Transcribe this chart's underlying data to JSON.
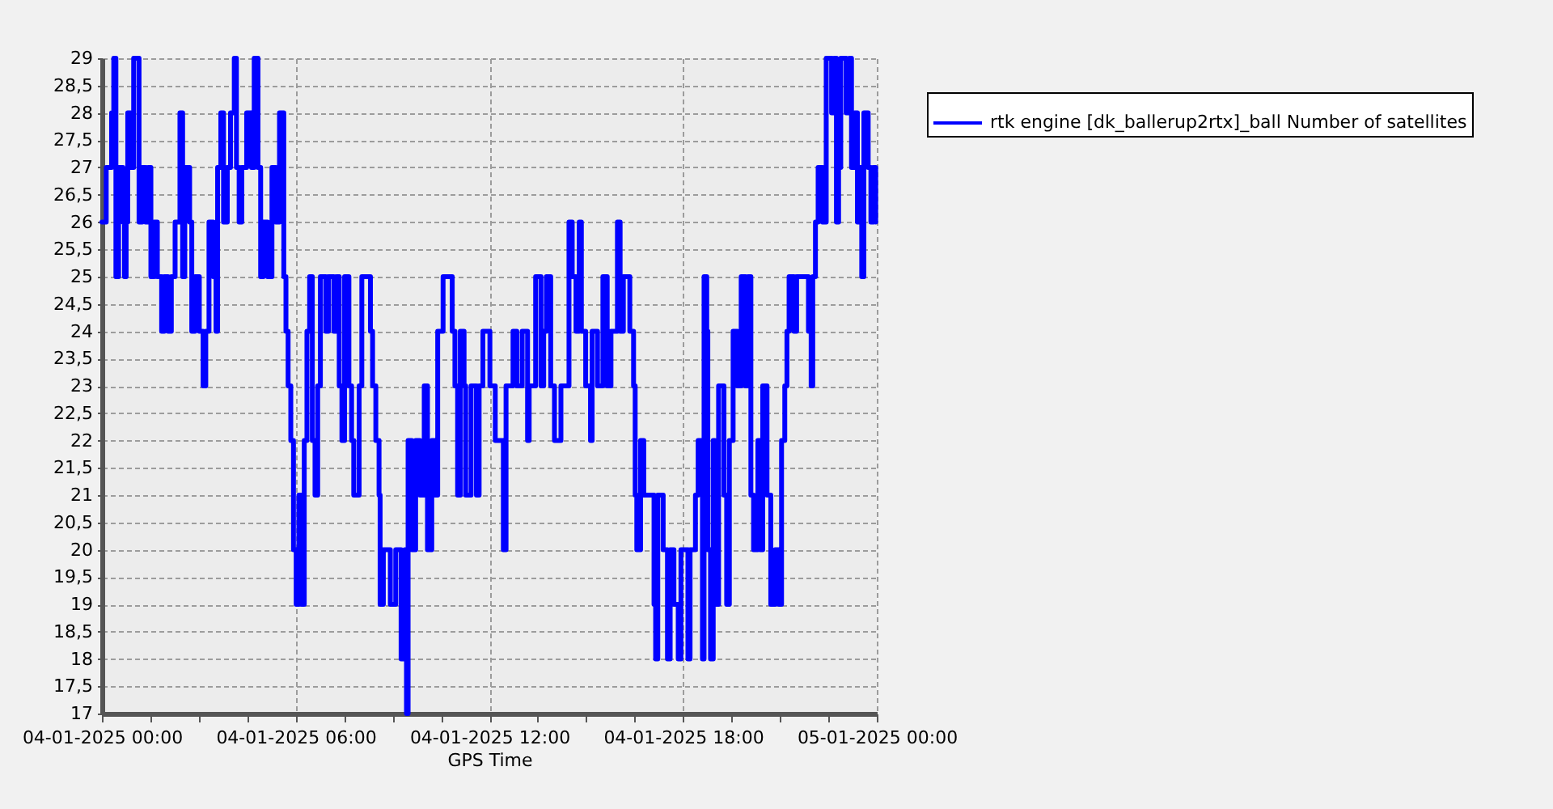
{
  "chart_data": {
    "type": "step",
    "xlabel": "GPS Time",
    "legend": "top right",
    "grid": true,
    "line_style": "solid",
    "xlim": [
      "2025-01-04T00:00",
      "2025-01-05T00:00"
    ],
    "xticks": [
      {
        "value": "2025-01-04T00:00",
        "label": "04-01-2025 00:00"
      },
      {
        "value": "2025-01-04T01:30",
        "label": null
      },
      {
        "value": "2025-01-04T03:00",
        "label": null
      },
      {
        "value": "2025-01-04T04:30",
        "label": null
      },
      {
        "value": "2025-01-04T06:00",
        "label": "04-01-2025 06:00"
      },
      {
        "value": "2025-01-04T07:30",
        "label": null
      },
      {
        "value": "2025-01-04T09:00",
        "label": null
      },
      {
        "value": "2025-01-04T10:30",
        "label": null
      },
      {
        "value": "2025-01-04T12:00",
        "label": "04-01-2025 12:00"
      },
      {
        "value": "2025-01-04T13:30",
        "label": null
      },
      {
        "value": "2025-01-04T15:00",
        "label": null
      },
      {
        "value": "2025-01-04T16:30",
        "label": null
      },
      {
        "value": "2025-01-04T18:00",
        "label": "04-01-2025 18:00"
      },
      {
        "value": "2025-01-04T19:30",
        "label": null
      },
      {
        "value": "2025-01-04T21:00",
        "label": null
      },
      {
        "value": "2025-01-04T22:30",
        "label": null
      },
      {
        "value": "2025-01-05T00:00",
        "label": "05-01-2025 00:00"
      }
    ],
    "ylim": [
      17,
      29
    ],
    "yticks": [
      17,
      {
        "value": 17.5,
        "label": "17,5"
      },
      18,
      {
        "value": 18.5,
        "label": "18,5"
      },
      19,
      {
        "value": 19.5,
        "label": "19,5"
      },
      20,
      {
        "value": 20.5,
        "label": "20,5"
      },
      21,
      {
        "value": 21.5,
        "label": "21,5"
      },
      22,
      {
        "value": 22.5,
        "label": "22,5"
      },
      23,
      {
        "value": 23.5,
        "label": "23,5"
      },
      24,
      {
        "value": 24.5,
        "label": "24,5"
      },
      25,
      {
        "value": 25.5,
        "label": "25,5"
      },
      26,
      {
        "value": 26.5,
        "label": "26,5"
      },
      27,
      {
        "value": 27.5,
        "label": "27,5"
      },
      28,
      {
        "value": 28.5,
        "label": "28,5"
      },
      29
    ],
    "x": [
      "2025-01-04T00:00",
      "2025-01-04T00:08",
      "2025-01-04T00:18",
      "2025-01-04T00:22",
      "2025-01-04T00:26",
      "2025-01-04T00:31",
      "2025-01-04T00:39",
      "2025-01-04T00:42",
      "2025-01-04T00:45",
      "2025-01-04T00:48",
      "2025-01-04T00:53",
      "2025-01-04T00:59",
      "2025-01-04T01:09",
      "2025-01-04T01:15",
      "2025-01-04T01:21",
      "2025-01-04T01:26",
      "2025-01-04T01:31",
      "2025-01-04T01:37",
      "2025-01-04T01:43",
      "2025-01-04T01:51",
      "2025-01-04T01:56",
      "2025-01-04T02:03",
      "2025-01-04T02:09",
      "2025-01-04T02:16",
      "2025-01-04T02:25",
      "2025-01-04T02:30",
      "2025-01-04T02:34",
      "2025-01-04T02:43",
      "2025-01-04T02:47",
      "2025-01-04T02:53",
      "2025-01-04T03:01",
      "2025-01-04T03:08",
      "2025-01-04T03:13",
      "2025-01-04T03:19",
      "2025-01-04T03:27",
      "2025-01-04T03:32",
      "2025-01-04T03:35",
      "2025-01-04T03:41",
      "2025-01-04T03:46",
      "2025-01-04T03:53",
      "2025-01-04T03:59",
      "2025-01-04T04:06",
      "2025-01-04T04:10",
      "2025-01-04T04:15",
      "2025-01-04T04:20",
      "2025-01-04T04:29",
      "2025-01-04T04:38",
      "2025-01-04T04:43",
      "2025-01-04T04:50",
      "2025-01-04T04:55",
      "2025-01-04T05:00",
      "2025-01-04T05:08",
      "2025-01-04T05:16",
      "2025-01-04T05:23",
      "2025-01-04T05:30",
      "2025-01-04T05:38",
      "2025-01-04T05:42",
      "2025-01-04T05:46",
      "2025-01-04T05:51",
      "2025-01-04T05:56",
      "2025-01-04T06:01",
      "2025-01-04T06:06",
      "2025-01-04T06:11",
      "2025-01-04T06:16",
      "2025-01-04T06:21",
      "2025-01-04T06:26",
      "2025-01-04T06:31",
      "2025-01-04T06:36",
      "2025-01-04T06:41",
      "2025-01-04T06:46",
      "2025-01-04T06:56",
      "2025-01-04T07:01",
      "2025-01-04T07:11",
      "2025-01-04T07:16",
      "2025-01-04T07:21",
      "2025-01-04T07:26",
      "2025-01-04T07:31",
      "2025-01-04T07:39",
      "2025-01-04T07:44",
      "2025-01-04T07:48",
      "2025-01-04T07:58",
      "2025-01-04T08:03",
      "2025-01-04T08:19",
      "2025-01-04T08:23",
      "2025-01-04T08:29",
      "2025-01-04T08:35",
      "2025-01-04T08:37",
      "2025-01-04T08:43",
      "2025-01-04T08:56",
      "2025-01-04T09:06",
      "2025-01-04T09:16",
      "2025-01-04T09:23",
      "2025-01-04T09:26",
      "2025-01-04T09:29",
      "2025-01-04T09:36",
      "2025-01-04T09:43",
      "2025-01-04T09:51",
      "2025-01-04T09:59",
      "2025-01-04T10:05",
      "2025-01-04T10:13",
      "2025-01-04T10:19",
      "2025-01-04T10:24",
      "2025-01-04T10:34",
      "2025-01-04T10:51",
      "2025-01-04T10:56",
      "2025-01-04T11:01",
      "2025-01-04T11:06",
      "2025-01-04T11:13",
      "2025-01-04T11:16",
      "2025-01-04T11:26",
      "2025-01-04T11:36",
      "2025-01-04T11:41",
      "2025-01-04T11:48",
      "2025-01-04T12:01",
      "2025-01-04T12:11",
      "2025-01-04T12:26",
      "2025-01-04T12:31",
      "2025-01-04T12:44",
      "2025-01-04T12:51",
      "2025-01-04T13:01",
      "2025-01-04T13:11",
      "2025-01-04T13:14",
      "2025-01-04T13:26",
      "2025-01-04T13:36",
      "2025-01-04T13:41",
      "2025-01-04T13:46",
      "2025-01-04T13:54",
      "2025-01-04T14:01",
      "2025-01-04T14:13",
      "2025-01-04T14:28",
      "2025-01-04T14:34",
      "2025-01-04T14:41",
      "2025-01-04T14:47",
      "2025-01-04T14:51",
      "2025-01-04T14:59",
      "2025-01-04T15:08",
      "2025-01-04T15:11",
      "2025-01-04T15:21",
      "2025-01-04T15:31",
      "2025-01-04T15:39",
      "2025-01-04T15:46",
      "2025-01-04T15:58",
      "2025-01-04T16:03",
      "2025-01-04T16:09",
      "2025-01-04T16:21",
      "2025-01-04T16:28",
      "2025-01-04T16:31",
      "2025-01-04T16:34",
      "2025-01-04T16:41",
      "2025-01-04T16:47",
      "2025-01-04T17:06",
      "2025-01-04T17:09",
      "2025-01-04T17:13",
      "2025-01-04T17:23",
      "2025-01-04T17:31",
      "2025-01-04T17:36",
      "2025-01-04T17:43",
      "2025-01-04T17:51",
      "2025-01-04T17:56",
      "2025-01-04T18:09",
      "2025-01-04T18:13",
      "2025-01-04T18:23",
      "2025-01-04T18:28",
      "2025-01-04T18:36",
      "2025-01-04T18:39",
      "2025-01-04T18:44",
      "2025-01-04T18:46",
      "2025-01-04T18:51",
      "2025-01-04T18:56",
      "2025-01-04T18:59",
      "2025-01-04T19:06",
      "2025-01-04T19:16",
      "2025-01-04T19:21",
      "2025-01-04T19:26",
      "2025-01-04T19:33",
      "2025-01-04T19:41",
      "2025-01-04T19:48",
      "2025-01-04T19:56",
      "2025-01-04T20:01",
      "2025-01-04T20:06",
      "2025-01-04T20:11",
      "2025-01-04T20:19",
      "2025-01-04T20:23",
      "2025-01-04T20:28",
      "2025-01-04T20:36",
      "2025-01-04T20:43",
      "2025-01-04T20:51",
      "2025-01-04T20:58",
      "2025-01-04T21:03",
      "2025-01-04T21:09",
      "2025-01-04T21:13",
      "2025-01-04T21:17",
      "2025-01-04T21:26",
      "2025-01-04T21:31",
      "2025-01-04T21:53",
      "2025-01-04T21:58",
      "2025-01-04T22:01",
      "2025-01-04T22:06",
      "2025-01-04T22:11",
      "2025-01-04T22:19",
      "2025-01-04T22:26",
      "2025-01-04T22:36",
      "2025-01-04T22:41",
      "2025-01-04T22:45",
      "2025-01-04T22:49",
      "2025-01-04T22:53",
      "2025-01-04T23:03",
      "2025-01-04T23:09",
      "2025-01-04T23:13",
      "2025-01-04T23:19",
      "2025-01-04T23:24",
      "2025-01-04T23:29",
      "2025-01-04T23:32",
      "2025-01-04T23:36",
      "2025-01-04T23:44",
      "2025-01-04T23:49",
      "2025-01-04T23:54",
      "2025-01-04T23:58"
    ],
    "series": [
      {
        "name": "rtk engine [dk_ballerup2rtx]_ball Number of satellites",
        "color": "#0000ff",
        "values": [
          26,
          27,
          28,
          29,
          25,
          27,
          26,
          25,
          26,
          28,
          27,
          29,
          26,
          27,
          26,
          27,
          25,
          26,
          25,
          24,
          25,
          24,
          25,
          26,
          28,
          25,
          27,
          26,
          24,
          25,
          24,
          23,
          24,
          26,
          25,
          24,
          27,
          28,
          26,
          27,
          28,
          29,
          27,
          26,
          27,
          28,
          27,
          29,
          27,
          25,
          26,
          25,
          27,
          26,
          28,
          25,
          24,
          23,
          22,
          20,
          19,
          21,
          19,
          22,
          24,
          25,
          22,
          21,
          23,
          25,
          24,
          25,
          24,
          25,
          23,
          22,
          25,
          23,
          22,
          21,
          23,
          25,
          24,
          23,
          22,
          21,
          19,
          20,
          19,
          20,
          18,
          20,
          17,
          22,
          20,
          22,
          21,
          23,
          20,
          22,
          21,
          24,
          25,
          24,
          23,
          21,
          24,
          23,
          21,
          23,
          21,
          23,
          24,
          23,
          22,
          20,
          23,
          24,
          23,
          24,
          22,
          23,
          25,
          23,
          24,
          25,
          23,
          22,
          23,
          26,
          25,
          24,
          26,
          24,
          23,
          22,
          24,
          23,
          25,
          23,
          24,
          26,
          24,
          25,
          24,
          23,
          21,
          20,
          22,
          21,
          19,
          18,
          21,
          20,
          18,
          20,
          19,
          18,
          20,
          18,
          20,
          21,
          22,
          18,
          25,
          24,
          20,
          18,
          22,
          19,
          23,
          21,
          19,
          22,
          24,
          23,
          25,
          23,
          25,
          21,
          20,
          22,
          20,
          23,
          21,
          19,
          20,
          19,
          22,
          23,
          24,
          25,
          24,
          25,
          24,
          23,
          25,
          26,
          27,
          26,
          29,
          28,
          29,
          26,
          27,
          29,
          28,
          29,
          27,
          28,
          26,
          27,
          25,
          28,
          27,
          26,
          27,
          26
        ]
      }
    ]
  }
}
